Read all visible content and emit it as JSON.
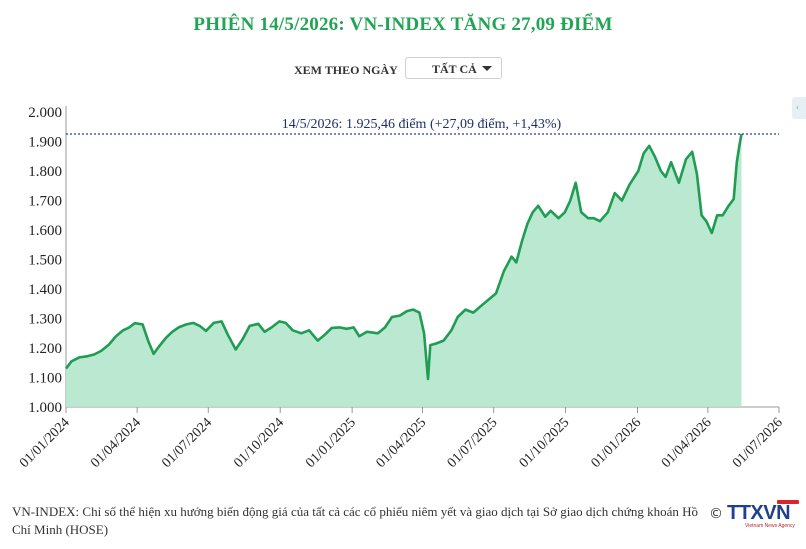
{
  "title": "PHIÊN 14/5/2026: VN-INDEX TĂNG 27,09 ĐIỂM",
  "filter": {
    "label": "XEM THEO NGÀY",
    "selected": "TẤT CẢ"
  },
  "annotation": "14/5/2026: 1.925,46 điểm (+27,09 điểm, +1,43%)",
  "footer": "VN-INDEX: Chỉ số thể hiện xu hướng biến động giá của tất cả các cổ phiếu niêm yết và giao dịch tại Sở giao dịch chứng khoán Hồ Chí Minh (HOSE)",
  "logo": {
    "copyright": "©",
    "brand": "TTXVN",
    "tagline": "Vietnam News Agency"
  },
  "colors": {
    "title": "#21a454",
    "line": "#1f9d52",
    "area": "#b4e6cb",
    "reference": "#2a3a8c"
  },
  "chart_data": {
    "type": "area",
    "xlabel": "",
    "ylabel": "",
    "ylim": [
      1000,
      2000
    ],
    "xlim": [
      "2024-01-01",
      "2026-07-01"
    ],
    "y_ticks": [
      1000,
      1100,
      1200,
      1300,
      1400,
      1500,
      1600,
      1700,
      1800,
      1900,
      2000
    ],
    "y_tick_labels": [
      "1.000",
      "1.100",
      "1.200",
      "1.300",
      "1.400",
      "1.500",
      "1.600",
      "1.700",
      "1.800",
      "1.900",
      "2.000"
    ],
    "x_ticks": [
      "2024-01-01",
      "2024-04-01",
      "2024-07-01",
      "2024-10-01",
      "2025-01-01",
      "2025-04-01",
      "2025-07-01",
      "2025-10-01",
      "2026-01-01",
      "2026-04-01",
      "2026-07-01"
    ],
    "x_tick_labels": [
      "01/01/2024",
      "01/04/2024",
      "01/07/2024",
      "01/10/2024",
      "01/01/2025",
      "01/04/2025",
      "01/07/2025",
      "01/10/2025",
      "01/01/2026",
      "01/04/2026",
      "01/07/2026"
    ],
    "reference_line": {
      "value": 1925.46
    },
    "grid": false,
    "legend": "none",
    "series": [
      {
        "points": [
          [
            "2024-01-01",
            1130
          ],
          [
            "2024-01-08",
            1155
          ],
          [
            "2024-01-18",
            1168
          ],
          [
            "2024-01-28",
            1172
          ],
          [
            "2024-02-06",
            1178
          ],
          [
            "2024-02-15",
            1190
          ],
          [
            "2024-02-25",
            1212
          ],
          [
            "2024-03-05",
            1240
          ],
          [
            "2024-03-14",
            1260
          ],
          [
            "2024-03-22",
            1270
          ],
          [
            "2024-03-29",
            1284
          ],
          [
            "2024-04-08",
            1280
          ],
          [
            "2024-04-15",
            1225
          ],
          [
            "2024-04-22",
            1180
          ],
          [
            "2024-04-29",
            1205
          ],
          [
            "2024-05-08",
            1235
          ],
          [
            "2024-05-16",
            1255
          ],
          [
            "2024-05-24",
            1270
          ],
          [
            "2024-06-03",
            1280
          ],
          [
            "2024-06-12",
            1285
          ],
          [
            "2024-06-20",
            1275
          ],
          [
            "2024-06-28",
            1258
          ],
          [
            "2024-07-08",
            1285
          ],
          [
            "2024-07-18",
            1290
          ],
          [
            "2024-07-26",
            1245
          ],
          [
            "2024-08-05",
            1195
          ],
          [
            "2024-08-14",
            1230
          ],
          [
            "2024-08-23",
            1275
          ],
          [
            "2024-09-03",
            1282
          ],
          [
            "2024-09-11",
            1255
          ],
          [
            "2024-09-20",
            1270
          ],
          [
            "2024-09-30",
            1290
          ],
          [
            "2024-10-08",
            1285
          ],
          [
            "2024-10-17",
            1260
          ],
          [
            "2024-10-28",
            1250
          ],
          [
            "2024-11-07",
            1260
          ],
          [
            "2024-11-18",
            1225
          ],
          [
            "2024-11-27",
            1245
          ],
          [
            "2024-12-06",
            1268
          ],
          [
            "2024-12-16",
            1270
          ],
          [
            "2024-12-25",
            1265
          ],
          [
            "2025-01-03",
            1270
          ],
          [
            "2025-01-10",
            1240
          ],
          [
            "2025-01-20",
            1255
          ],
          [
            "2025-02-03",
            1250
          ],
          [
            "2025-02-12",
            1270
          ],
          [
            "2025-02-21",
            1305
          ],
          [
            "2025-03-03",
            1310
          ],
          [
            "2025-03-12",
            1325
          ],
          [
            "2025-03-20",
            1330
          ],
          [
            "2025-03-28",
            1320
          ],
          [
            "2025-04-03",
            1250
          ],
          [
            "2025-04-08",
            1095
          ],
          [
            "2025-04-11",
            1210
          ],
          [
            "2025-04-18",
            1215
          ],
          [
            "2025-04-28",
            1225
          ],
          [
            "2025-05-08",
            1260
          ],
          [
            "2025-05-16",
            1305
          ],
          [
            "2025-05-26",
            1330
          ],
          [
            "2025-06-05",
            1320
          ],
          [
            "2025-06-16",
            1345
          ],
          [
            "2025-06-25",
            1365
          ],
          [
            "2025-07-04",
            1385
          ],
          [
            "2025-07-14",
            1460
          ],
          [
            "2025-07-24",
            1510
          ],
          [
            "2025-07-30",
            1490
          ],
          [
            "2025-08-06",
            1560
          ],
          [
            "2025-08-13",
            1620
          ],
          [
            "2025-08-20",
            1660
          ],
          [
            "2025-08-27",
            1682
          ],
          [
            "2025-09-05",
            1645
          ],
          [
            "2025-09-12",
            1665
          ],
          [
            "2025-09-22",
            1640
          ],
          [
            "2025-09-30",
            1660
          ],
          [
            "2025-10-07",
            1700
          ],
          [
            "2025-10-14",
            1760
          ],
          [
            "2025-10-21",
            1660
          ],
          [
            "2025-10-30",
            1640
          ],
          [
            "2025-11-06",
            1640
          ],
          [
            "2025-11-14",
            1630
          ],
          [
            "2025-11-24",
            1660
          ],
          [
            "2025-12-03",
            1725
          ],
          [
            "2025-12-12",
            1700
          ],
          [
            "2025-12-22",
            1755
          ],
          [
            "2026-01-02",
            1800
          ],
          [
            "2026-01-09",
            1860
          ],
          [
            "2026-01-16",
            1885
          ],
          [
            "2026-01-23",
            1850
          ],
          [
            "2026-01-31",
            1800
          ],
          [
            "2026-02-06",
            1780
          ],
          [
            "2026-02-13",
            1830
          ],
          [
            "2026-02-23",
            1760
          ],
          [
            "2026-03-04",
            1840
          ],
          [
            "2026-03-12",
            1865
          ],
          [
            "2026-03-18",
            1790
          ],
          [
            "2026-03-24",
            1650
          ],
          [
            "2026-03-30",
            1630
          ],
          [
            "2026-04-06",
            1590
          ],
          [
            "2026-04-13",
            1650
          ],
          [
            "2026-04-20",
            1650
          ],
          [
            "2026-04-27",
            1680
          ],
          [
            "2026-05-04",
            1705
          ],
          [
            "2026-05-08",
            1830
          ],
          [
            "2026-05-11",
            1880
          ],
          [
            "2026-05-14",
            1925.46
          ]
        ]
      }
    ]
  }
}
